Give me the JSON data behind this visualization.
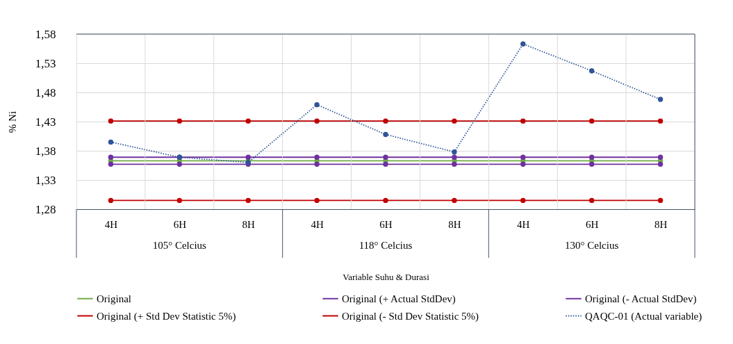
{
  "chart_data": {
    "type": "line",
    "categories": [
      "4H",
      "6H",
      "8H",
      "4H",
      "6H",
      "8H",
      "4H",
      "6H",
      "8H"
    ],
    "annotations": [
      "105° Celcius",
      "118° Celcius",
      "130° Celcius"
    ],
    "xlabel": "Variable Suhu & Durasi",
    "ylabel": "% Ni",
    "ylim": [
      1.28,
      1.58
    ],
    "yticks": [
      {
        "value": 1.28,
        "label": "1,28"
      },
      {
        "value": 1.33,
        "label": "1,33"
      },
      {
        "value": 1.38,
        "label": "1,38"
      },
      {
        "value": 1.43,
        "label": "1,43"
      },
      {
        "value": 1.48,
        "label": "1,48"
      },
      {
        "value": 1.53,
        "label": "1,53"
      },
      {
        "value": 1.58,
        "label": "1,58"
      }
    ],
    "grid": true,
    "legend": "bottom",
    "marker": "circle",
    "series": [
      {
        "name": "Original",
        "color": "#70ad47",
        "values": [
          1.363,
          1.363,
          1.363,
          1.363,
          1.363,
          1.363,
          1.363,
          1.363,
          1.363
        ]
      },
      {
        "name": "Original (+ Actual StdDev)",
        "color": "#7030a0",
        "values": [
          1.369,
          1.369,
          1.369,
          1.369,
          1.369,
          1.369,
          1.369,
          1.369,
          1.369
        ]
      },
      {
        "name": "Original (- Actual StdDev)",
        "color": "#7030a0",
        "values": [
          1.357,
          1.357,
          1.357,
          1.357,
          1.357,
          1.357,
          1.357,
          1.357,
          1.357
        ]
      },
      {
        "name": "Original (+ Std Dev Statistic 5%)",
        "color": "#c00000",
        "values": [
          1.431,
          1.431,
          1.431,
          1.431,
          1.431,
          1.431,
          1.431,
          1.431,
          1.431
        ]
      },
      {
        "name": "Original (- Std Dev Statistic 5%)",
        "color": "#c00000",
        "values": [
          1.295,
          1.295,
          1.295,
          1.295,
          1.295,
          1.295,
          1.295,
          1.295,
          1.295
        ]
      },
      {
        "name": "QAQC-01 (Actual variable)",
        "color": "#2f5597",
        "line_style": "dotted",
        "values": [
          1.395,
          1.369,
          1.36,
          1.459,
          1.408,
          1.378,
          1.563,
          1.517,
          1.468
        ]
      }
    ]
  }
}
